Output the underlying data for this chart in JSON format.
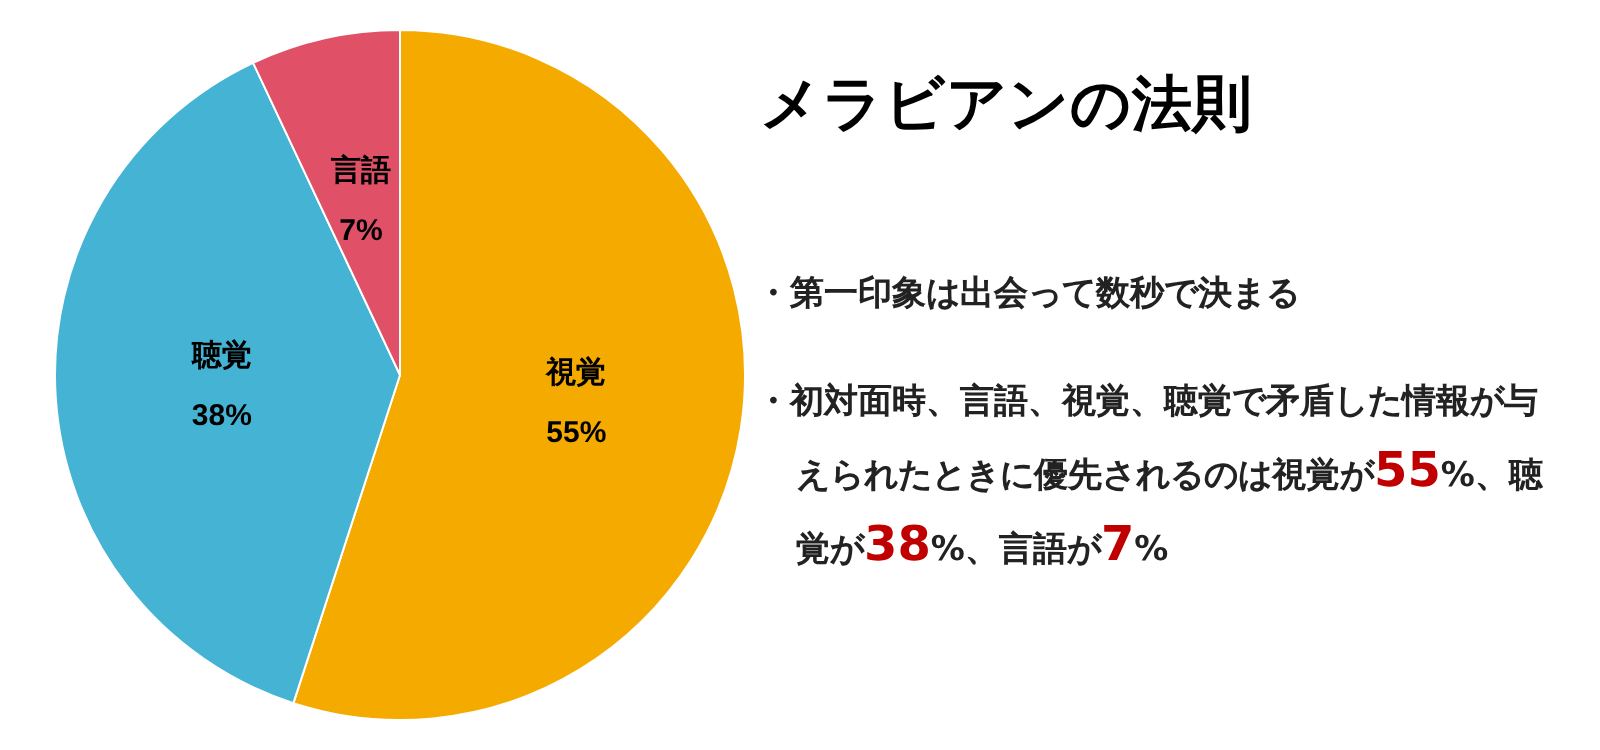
{
  "chart_data": {
    "type": "pie",
    "title": "メラビアンの法則",
    "categories": [
      "視覚",
      "聴覚",
      "言語"
    ],
    "values": [
      55,
      38,
      7
    ],
    "colors": [
      "#f5aa00",
      "#45b3d3",
      "#e05168"
    ],
    "value_labels": [
      "55%",
      "38%",
      "7%"
    ],
    "annotations": [
      "・第一印象は出会って数秒で決まる",
      "・初対面時、言語、視覚、聴覚で矛盾した情報が与えられたときに優先されるのは視覚が55%、聴覚が38%、言語が7%"
    ]
  }
}
